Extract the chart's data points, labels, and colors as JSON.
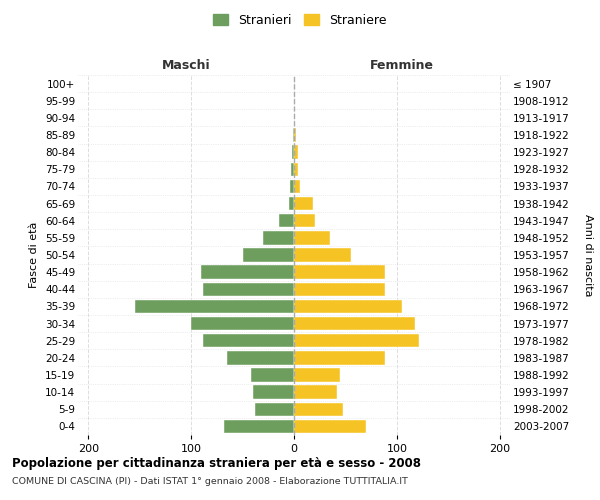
{
  "age_groups": [
    "0-4",
    "5-9",
    "10-14",
    "15-19",
    "20-24",
    "25-29",
    "30-34",
    "35-39",
    "40-44",
    "45-49",
    "50-54",
    "55-59",
    "60-64",
    "65-69",
    "70-74",
    "75-79",
    "80-84",
    "85-89",
    "90-94",
    "95-99",
    "100+"
  ],
  "birth_years": [
    "2003-2007",
    "1998-2002",
    "1993-1997",
    "1988-1992",
    "1983-1987",
    "1978-1982",
    "1973-1977",
    "1968-1972",
    "1963-1967",
    "1958-1962",
    "1953-1957",
    "1948-1952",
    "1943-1947",
    "1938-1942",
    "1933-1937",
    "1928-1932",
    "1923-1927",
    "1918-1922",
    "1913-1917",
    "1908-1912",
    "≤ 1907"
  ],
  "males": [
    68,
    38,
    40,
    42,
    65,
    88,
    100,
    155,
    88,
    90,
    50,
    30,
    15,
    5,
    4,
    3,
    2,
    1,
    0,
    0,
    0
  ],
  "females": [
    70,
    48,
    42,
    45,
    88,
    122,
    118,
    105,
    88,
    88,
    55,
    35,
    20,
    18,
    6,
    4,
    4,
    2,
    0,
    0,
    0
  ],
  "male_color": "#6d9e5e",
  "female_color": "#f5c324",
  "center_line_color": "#aaaaaa",
  "grid_color": "#dddddd",
  "bg_color": "#ffffff",
  "xlim": 210,
  "title": "Popolazione per cittadinanza straniera per età e sesso - 2008",
  "subtitle": "COMUNE DI CASCINA (PI) - Dati ISTAT 1° gennaio 2008 - Elaborazione TUTTITALIA.IT",
  "legend_stranieri": "Stranieri",
  "legend_straniere": "Straniere",
  "ylabel_left": "Fasce di età",
  "ylabel_right": "Anni di nascita",
  "xlabel_left": "Maschi",
  "xlabel_right": "Femmine"
}
